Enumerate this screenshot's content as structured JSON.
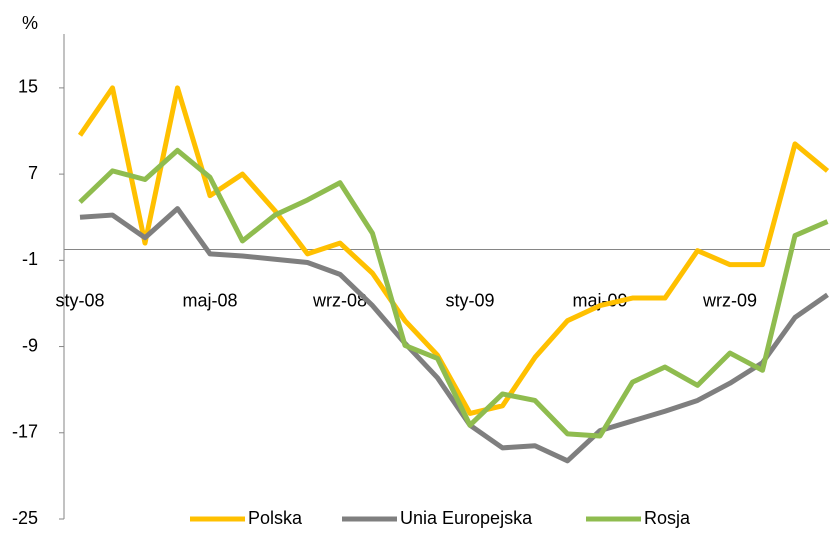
{
  "chart_data": {
    "type": "line",
    "y_label": "%",
    "categories": [
      "sty-08",
      null,
      null,
      null,
      "maj-08",
      null,
      null,
      null,
      "wrz-08",
      null,
      null,
      null,
      "sty-09",
      null,
      null,
      null,
      "maj-09",
      null,
      null,
      null,
      "wrz-09",
      null,
      null,
      null
    ],
    "series": [
      {
        "name": "Polska",
        "color": "#ffc000",
        "values": [
          10.6,
          15,
          0.6,
          15,
          5,
          7,
          3.6,
          -0.4,
          0.6,
          -2.2,
          -6.6,
          -9.8,
          -15.2,
          -14.5,
          -10,
          -6.6,
          -5.2,
          -4.5,
          -4.5,
          -0.1,
          -1.4,
          -1.4,
          9.8,
          7.3
        ]
      },
      {
        "name": "Unia Europejska",
        "color": "#7f7f7f",
        "values": [
          3,
          3.2,
          1.1,
          3.8,
          -0.4,
          -0.6,
          -0.9,
          -1.2,
          -2.3,
          -5.2,
          -8.7,
          -11.9,
          -16.3,
          -18.4,
          -18.2,
          -19.6,
          -16.8,
          -15.9,
          -15,
          -14,
          -12.4,
          -10.5,
          -6.3,
          -4.2
        ]
      },
      {
        "name": "Rosja",
        "color": "#8fbc4f",
        "values": [
          4.4,
          7.3,
          6.5,
          9.2,
          6.7,
          0.8,
          3.2,
          4.6,
          6.2,
          1.5,
          -8.9,
          -10.1,
          -16.3,
          -13.4,
          -14,
          -17.1,
          -17.3,
          -12.3,
          -10.9,
          -12.6,
          -9.6,
          -11.2,
          1.3,
          2.6
        ]
      }
    ],
    "ylim": [
      -25,
      20
    ],
    "yticks": [
      -25,
      -17,
      -9,
      -1,
      7,
      15
    ],
    "legend": "bottom"
  }
}
